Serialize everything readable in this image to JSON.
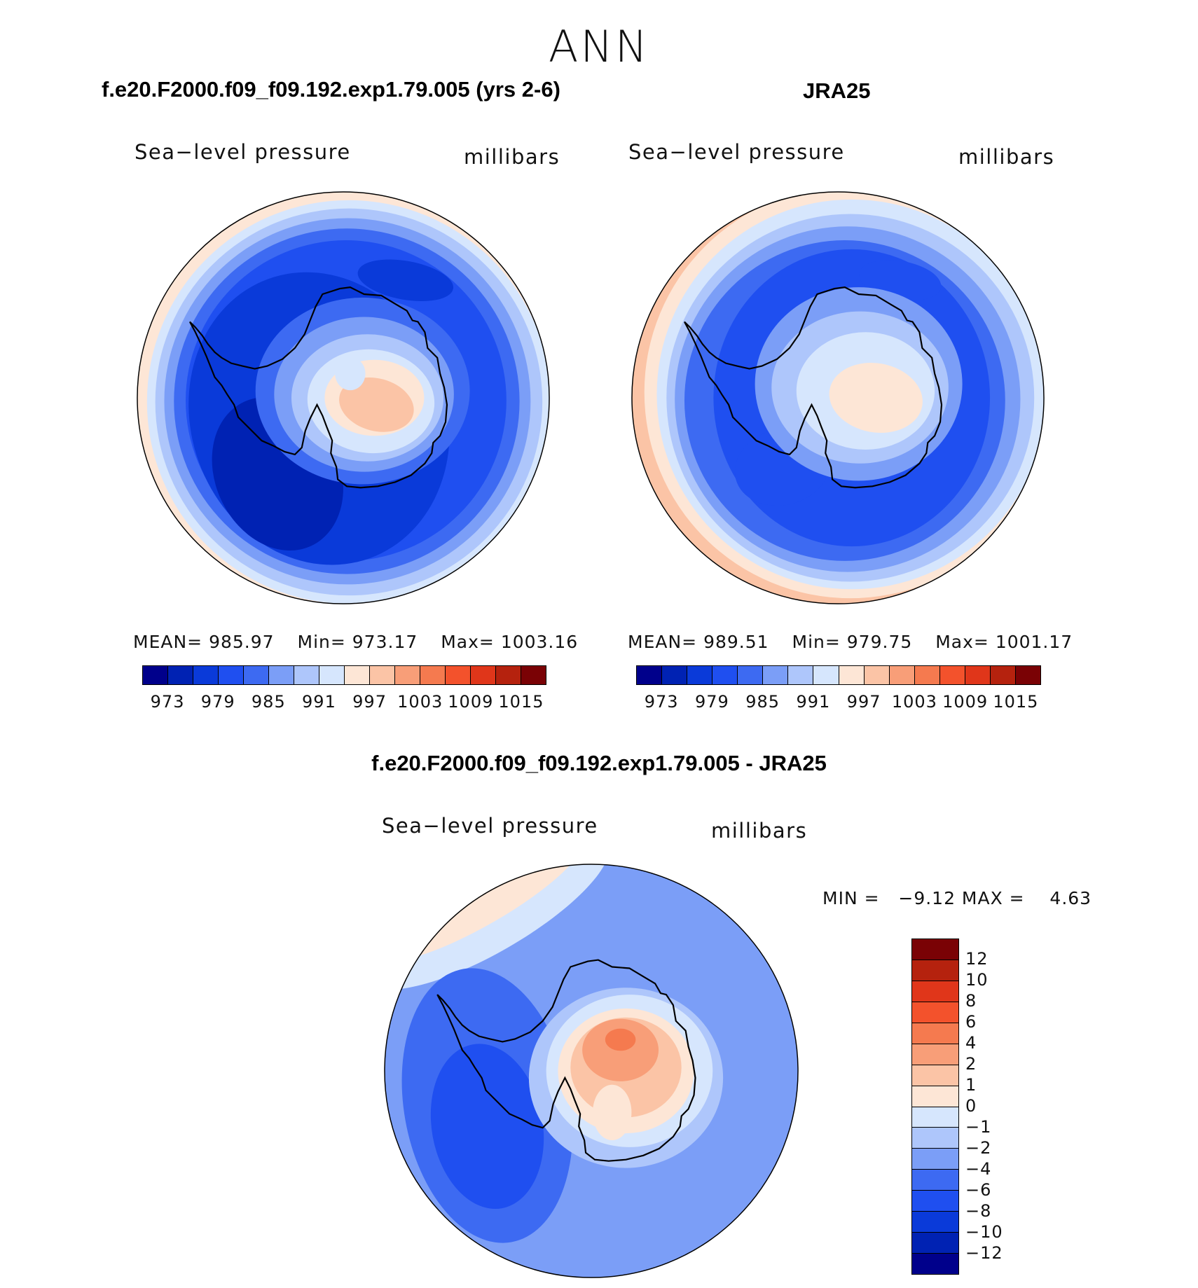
{
  "season": "ANN",
  "panels": [
    {
      "case_title": "f.e20.F2000.f09_f09.192.exp1.79.005 (yrs 2-6)",
      "left_label": "Sea−level pressure",
      "right_label": "millibars",
      "stats": {
        "mean_label": "MEAN=",
        "mean": "985.97",
        "min_label": "Min=",
        "min": "973.17",
        "max_label": "Max=",
        "max": "1003.16"
      },
      "colorbar_ticks": [
        "973",
        "979",
        "985",
        "991",
        "997",
        "1003",
        "1009",
        "1015"
      ]
    },
    {
      "case_title": "JRA25",
      "left_label": "Sea−level pressure",
      "right_label": "millibars",
      "stats": {
        "mean_label": "MEAN=",
        "mean": "989.51",
        "min_label": "Min=",
        "min": "979.75",
        "max_label": "Max=",
        "max": "1001.17"
      },
      "colorbar_ticks": [
        "973",
        "979",
        "985",
        "991",
        "997",
        "1003",
        "1009",
        "1015"
      ]
    }
  ],
  "diff_panel": {
    "case_title": "f.e20.F2000.f09_f09.192.exp1.79.005 - JRA25",
    "left_label": "Sea−level pressure",
    "right_label": "millibars",
    "minmax_text": "MIN =   −9.12 MAX =    4.63",
    "colorbar_ticks": [
      "12",
      "10",
      "8",
      "6",
      "4",
      "2",
      "1",
      "0",
      "−1",
      "−2",
      "−4",
      "−6",
      "−8",
      "−10",
      "−12"
    ]
  },
  "colors": {
    "palette16": [
      "#00008b",
      "#0022b3",
      "#0a3ad9",
      "#1f4ff0",
      "#3d6af2",
      "#7b9ef7",
      "#aec6fb",
      "#d6e6fd",
      "#fde6d6",
      "#fbc4a6",
      "#f89e78",
      "#f57a4f",
      "#f3522c",
      "#e0361a",
      "#b5220e",
      "#7a0205"
    ],
    "coast": "#000000"
  }
}
